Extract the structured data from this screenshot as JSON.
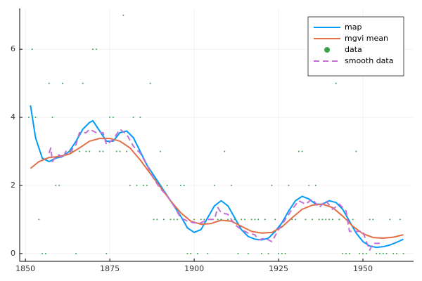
{
  "chart_data": {
    "type": "line",
    "xlim": [
      1848.3,
      1965
    ],
    "ylim": [
      -0.23,
      7.2
    ],
    "xticks": [
      1850,
      1875,
      1900,
      1925,
      1950
    ],
    "yticks": [
      0,
      2,
      4,
      6
    ],
    "grid": true,
    "legend": "top-right",
    "series": [
      {
        "name": "map",
        "color": "#009af9",
        "style": "solid",
        "x": [
          1851.5,
          1853,
          1855,
          1857,
          1859,
          1861,
          1863,
          1865,
          1867,
          1869,
          1870,
          1872,
          1874,
          1876,
          1878,
          1880,
          1882,
          1884,
          1886,
          1888,
          1890,
          1892,
          1894,
          1896,
          1898,
          1900,
          1902,
          1904,
          1906,
          1908,
          1910,
          1912,
          1914,
          1916,
          1918,
          1920,
          1922,
          1924,
          1926,
          1928,
          1930,
          1932,
          1934,
          1936,
          1938,
          1940,
          1942,
          1944,
          1946,
          1948,
          1950,
          1952,
          1954,
          1956,
          1958,
          1960,
          1962
        ],
        "values": [
          4.35,
          3.4,
          2.8,
          2.7,
          2.8,
          2.85,
          3.0,
          3.3,
          3.65,
          3.85,
          3.9,
          3.6,
          3.3,
          3.3,
          3.55,
          3.6,
          3.4,
          3.0,
          2.6,
          2.3,
          2.0,
          1.7,
          1.4,
          1.1,
          0.75,
          0.62,
          0.7,
          1.05,
          1.4,
          1.55,
          1.4,
          1.05,
          0.7,
          0.5,
          0.42,
          0.4,
          0.45,
          0.65,
          0.9,
          1.25,
          1.55,
          1.68,
          1.6,
          1.45,
          1.45,
          1.55,
          1.5,
          1.3,
          0.95,
          0.6,
          0.35,
          0.22,
          0.18,
          0.2,
          0.25,
          0.33,
          0.42
        ]
      },
      {
        "name": "mgvi mean",
        "color": "#e26f46",
        "style": "solid",
        "x": [
          1851.5,
          1854,
          1857,
          1860,
          1863,
          1866,
          1869,
          1872,
          1875,
          1878,
          1881,
          1884,
          1887,
          1890,
          1893,
          1896,
          1899,
          1902,
          1905,
          1908,
          1911,
          1914,
          1917,
          1920,
          1923,
          1926,
          1929,
          1932,
          1935,
          1938,
          1941,
          1944,
          1947,
          1950,
          1953,
          1956,
          1959,
          1962
        ],
        "values": [
          2.5,
          2.7,
          2.82,
          2.85,
          2.92,
          3.1,
          3.3,
          3.38,
          3.38,
          3.3,
          3.1,
          2.75,
          2.35,
          1.95,
          1.55,
          1.2,
          0.95,
          0.86,
          0.88,
          0.98,
          0.95,
          0.8,
          0.65,
          0.6,
          0.62,
          0.78,
          1.05,
          1.3,
          1.42,
          1.45,
          1.35,
          1.1,
          0.8,
          0.58,
          0.47,
          0.45,
          0.48,
          0.55
        ]
      },
      {
        "name": "data",
        "color": "#3da44d",
        "style": "markers",
        "x": [
          1851,
          1852,
          1853,
          1854,
          1855,
          1856,
          1857,
          1858,
          1859,
          1860,
          1861,
          1862,
          1863,
          1864,
          1865,
          1866,
          1867,
          1868,
          1869,
          1870,
          1871,
          1872,
          1873,
          1874,
          1875,
          1876,
          1877,
          1878,
          1879,
          1880,
          1881,
          1882,
          1883,
          1884,
          1885,
          1886,
          1887,
          1888,
          1889,
          1890,
          1891,
          1892,
          1893,
          1894,
          1895,
          1896,
          1897,
          1898,
          1899,
          1900,
          1901,
          1902,
          1903,
          1904,
          1905,
          1906,
          1907,
          1908,
          1909,
          1910,
          1911,
          1912,
          1913,
          1914,
          1915,
          1916,
          1917,
          1918,
          1919,
          1920,
          1921,
          1922,
          1923,
          1924,
          1925,
          1926,
          1927,
          1928,
          1929,
          1930,
          1931,
          1932,
          1933,
          1934,
          1935,
          1936,
          1937,
          1938,
          1939,
          1940,
          1941,
          1942,
          1943,
          1944,
          1945,
          1946,
          1947,
          1948,
          1949,
          1950,
          1951,
          1952,
          1953,
          1954,
          1955,
          1956,
          1957,
          1958,
          1959,
          1960,
          1961,
          1962
        ],
        "values": [
          4,
          6,
          4,
          1,
          0,
          0,
          5,
          4,
          2,
          2,
          5,
          3,
          3,
          3,
          0,
          3,
          5,
          3,
          3,
          6,
          6,
          3,
          3,
          0,
          4,
          4,
          3,
          3,
          7,
          3,
          2,
          4,
          2,
          4,
          2,
          2,
          5,
          1,
          1,
          3,
          1,
          2,
          1,
          1,
          1,
          2,
          2,
          0,
          0,
          1,
          0,
          1,
          1,
          0,
          1,
          2,
          1,
          1,
          3,
          1,
          2,
          1,
          0,
          1,
          1,
          0,
          1,
          1,
          1,
          0,
          1,
          0,
          2,
          1,
          0,
          0,
          0,
          2,
          1,
          1,
          3,
          3,
          1,
          2,
          1,
          2,
          1,
          1,
          1,
          1,
          1,
          5,
          1,
          0,
          0,
          0,
          1,
          3,
          0,
          0,
          0,
          1,
          1,
          0,
          0,
          0,
          0,
          1,
          0,
          0,
          1,
          0
        ]
      },
      {
        "name": "smooth data",
        "color": "#c271d2",
        "style": "dashed",
        "x": [
          1857,
          1857.5,
          1858,
          1859,
          1860,
          1861,
          1862,
          1863,
          1865,
          1866,
          1868,
          1869,
          1871,
          1873,
          1874,
          1876,
          1878,
          1880,
          1882,
          1884,
          1886,
          1888,
          1890,
          1892,
          1894,
          1896,
          1898,
          1900,
          1902,
          1904,
          1906,
          1907,
          1908,
          1910,
          1912,
          1914,
          1916,
          1918,
          1919,
          1921,
          1923,
          1925,
          1927,
          1929,
          1931,
          1933,
          1935,
          1937,
          1939,
          1941,
          1943,
          1945,
          1946,
          1948,
          1950,
          1951,
          1952,
          1953,
          1955
        ],
        "values": [
          2.95,
          3.1,
          2.7,
          2.85,
          2.9,
          2.8,
          3.0,
          2.95,
          3.2,
          3.55,
          3.55,
          3.65,
          3.55,
          3.55,
          3.2,
          3.35,
          3.65,
          3.5,
          3.15,
          2.95,
          2.6,
          2.2,
          1.9,
          1.7,
          1.4,
          1.05,
          0.95,
          0.9,
          0.9,
          1.0,
          1.0,
          1.35,
          1.2,
          1.15,
          0.85,
          0.7,
          0.6,
          0.55,
          0.4,
          0.45,
          0.35,
          0.7,
          1.0,
          1.3,
          1.55,
          1.45,
          1.6,
          1.35,
          1.55,
          1.3,
          1.45,
          1.25,
          0.65,
          0.65,
          0.65,
          0.35,
          0.1,
          0.3,
          0.3
        ]
      }
    ]
  }
}
